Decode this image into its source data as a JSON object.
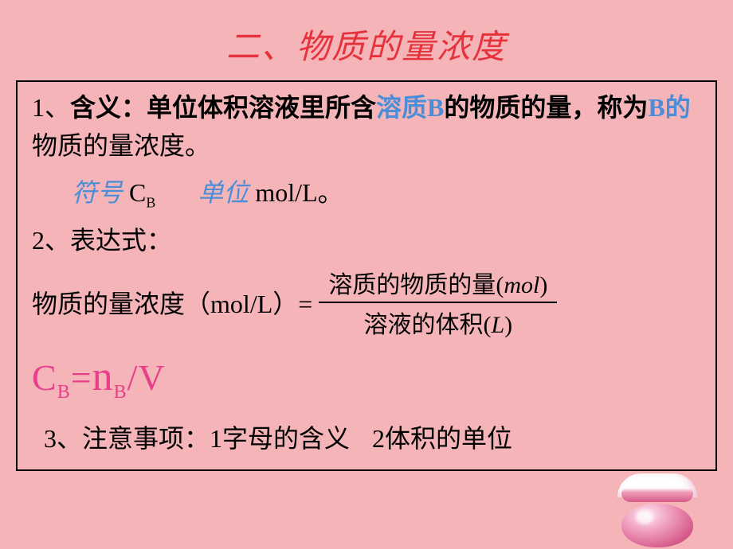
{
  "title": "二、物质的量浓度",
  "section1": {
    "number": "1、",
    "label": "含义：",
    "text_part1": "单位体积溶液里所含",
    "solute": "溶质B",
    "text_part2": "的物质的量，称为",
    "b_of": "B的",
    "concentration": "物质的量浓度",
    "period": "。"
  },
  "section2": {
    "symbol_label": "符号",
    "c": "C",
    "b_sub": "B",
    "unit_label": "单位",
    "unit_value": "mol/L",
    "period": "。"
  },
  "section3": {
    "number": "2、",
    "label": "表达式："
  },
  "expression": {
    "left_text": "物质的量浓度",
    "paren_open": "（",
    "paren_unit": "mol/L",
    "paren_close": "）",
    "equals": "=",
    "frac_top_text": "溶质的物质的量",
    "frac_top_paren_open": "(",
    "frac_top_var": "mol",
    "frac_top_paren_close": ")",
    "frac_bottom_text": "溶液的体积",
    "frac_bottom_paren_open": "(",
    "frac_bottom_var": "L",
    "frac_bottom_paren_close": ")"
  },
  "formula": {
    "c": "C",
    "c_sub": "B",
    "equals": "=",
    "n": "n",
    "n_sub": "B",
    "slash": "/",
    "v": "V"
  },
  "section4": {
    "number": "3、",
    "label": "注意事项：",
    "item1": "1字母的含义",
    "item2": "2体积的单位"
  },
  "colors": {
    "background": "#f5b5b8",
    "title_color": "#e6323c",
    "blue_accent": "#4a8dd8",
    "formula_color": "#e83e8c",
    "text_color": "#000000"
  }
}
